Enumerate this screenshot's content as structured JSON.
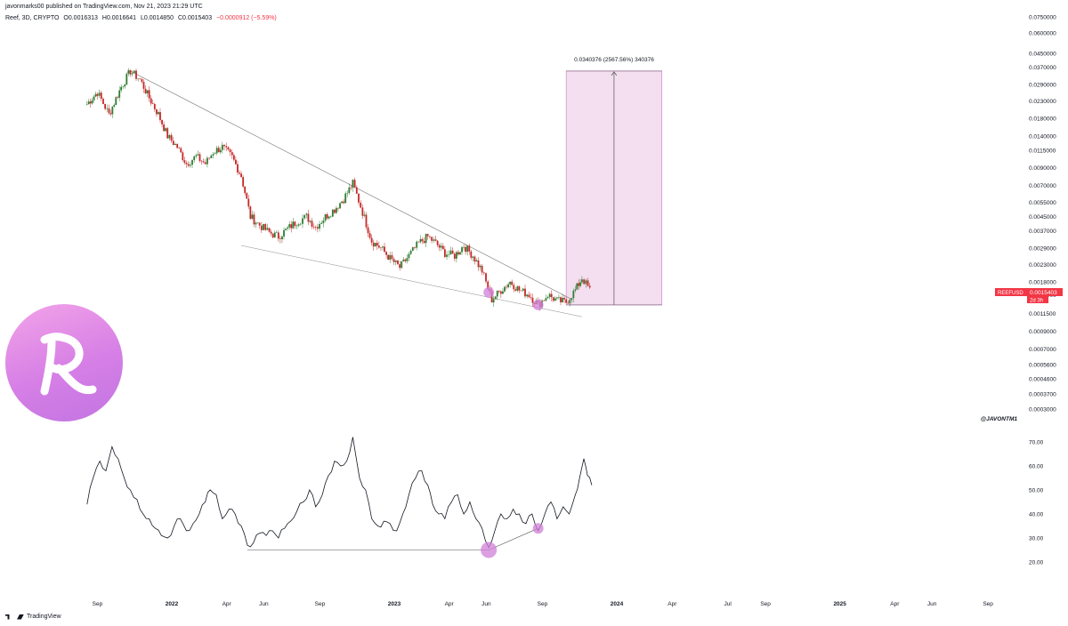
{
  "header": {
    "publisher": "javonmarks00 published on TradingView.com, Nov 21, 2023 21:29 UTC",
    "symbol": "Reef, 3D, CRYPTO",
    "open": "O0.0016313",
    "high": "H0.0016641",
    "low": "L0.0014850",
    "close": "C0.0015403",
    "change": "−0.0000912 (−5.59%)"
  },
  "price_badge": {
    "symbol": "REEFUSD",
    "price": "0.0015403",
    "countdown": "2d 3h",
    "color": "#f23645"
  },
  "projection": {
    "label": "0.0340376 (2567.56%) 340376",
    "fill": "#f3dff0",
    "border": "#c77fc0"
  },
  "watermark": "@JAVONTM1",
  "logo": {
    "icon": "reef-logo-icon",
    "letter": "R"
  },
  "footer": {
    "brand": "TradingView",
    "icon": "tradingview-logo-icon"
  },
  "colors": {
    "up": "#26a69a",
    "down": "#ef5350",
    "up_candle": "#2e7d32",
    "down_candle": "#c62828",
    "highlight": "#d07fd8",
    "line": "#131722"
  },
  "chart_data": [
    {
      "type": "candlestick",
      "scale": "log",
      "price_ticks": [
        "0.0750000",
        "0.0600000",
        "0.0450000",
        "0.0370000",
        "0.0290000",
        "0.0230000",
        "0.0180000",
        "0.0140000",
        "0.0115000",
        "0.0090000",
        "0.0070000",
        "0.0055000",
        "0.0045000",
        "0.0037000",
        "0.0029000",
        "0.0023000",
        "0.0018000",
        "0.0015000",
        "0.0011500",
        "0.0009000",
        "0.0007000",
        "0.0005600",
        "0.0004600",
        "0.0003700",
        "0.0003000"
      ],
      "x_ticks": [
        "Sep",
        "2022",
        "Apr",
        "Jun",
        "Sep",
        "2023",
        "Apr",
        "Jun",
        "Sep",
        "2024",
        "Apr",
        "Jul",
        "Sep",
        "2025",
        "Apr",
        "Jun",
        "Sep"
      ],
      "bold_x_ticks": [
        "2022",
        "2023",
        "2024",
        "2025"
      ],
      "approx_close_path": [
        [
          "2021-08-15",
          0.022
        ],
        [
          "2021-09-01",
          0.026
        ],
        [
          "2021-09-20",
          0.019
        ],
        [
          "2021-10-10",
          0.028
        ],
        [
          "2021-10-25",
          0.035
        ],
        [
          "2021-11-10",
          0.031
        ],
        [
          "2021-11-25",
          0.024
        ],
        [
          "2021-12-10",
          0.019
        ],
        [
          "2021-12-25",
          0.014
        ],
        [
          "2022-01-10",
          0.012
        ],
        [
          "2022-01-25",
          0.0095
        ],
        [
          "2022-02-10",
          0.0105
        ],
        [
          "2022-02-25",
          0.0095
        ],
        [
          "2022-03-10",
          0.0112
        ],
        [
          "2022-03-25",
          0.012
        ],
        [
          "2022-04-10",
          0.0104
        ],
        [
          "2022-04-25",
          0.008
        ],
        [
          "2022-05-10",
          0.0045
        ],
        [
          "2022-05-25",
          0.004
        ],
        [
          "2022-06-10",
          0.0036
        ],
        [
          "2022-06-25",
          0.0034
        ],
        [
          "2022-07-10",
          0.0038
        ],
        [
          "2022-07-25",
          0.0042
        ],
        [
          "2022-08-10",
          0.0045
        ],
        [
          "2022-08-25",
          0.0039
        ],
        [
          "2022-09-10",
          0.0045
        ],
        [
          "2022-09-25",
          0.005
        ],
        [
          "2022-10-10",
          0.0058
        ],
        [
          "2022-10-25",
          0.0072
        ],
        [
          "2022-11-10",
          0.0048
        ],
        [
          "2022-11-25",
          0.0032
        ],
        [
          "2022-12-10",
          0.0029
        ],
        [
          "2022-12-25",
          0.0025
        ],
        [
          "2023-01-10",
          0.0022
        ],
        [
          "2023-01-25",
          0.0026
        ],
        [
          "2023-02-10",
          0.0031
        ],
        [
          "2023-02-25",
          0.0034
        ],
        [
          "2023-03-10",
          0.0031
        ],
        [
          "2023-03-25",
          0.0027
        ],
        [
          "2023-04-10",
          0.0026
        ],
        [
          "2023-04-25",
          0.003
        ],
        [
          "2023-05-10",
          0.0026
        ],
        [
          "2023-05-25",
          0.0021
        ],
        [
          "2023-06-10",
          0.0014
        ],
        [
          "2023-06-25",
          0.0016
        ],
        [
          "2023-07-10",
          0.0018
        ],
        [
          "2023-07-25",
          0.0016
        ],
        [
          "2023-08-10",
          0.0015
        ],
        [
          "2023-08-25",
          0.0013
        ],
        [
          "2023-09-10",
          0.0015
        ],
        [
          "2023-09-25",
          0.00138
        ],
        [
          "2023-10-10",
          0.00135
        ],
        [
          "2023-10-25",
          0.0016
        ],
        [
          "2023-11-05",
          0.0019
        ],
        [
          "2023-11-21",
          0.0015403
        ]
      ],
      "annotations": {
        "upper_trendline": [
          [
            "2021-10-25",
            0.035
          ],
          [
            "2023-10-20",
            0.0014
          ]
        ],
        "lower_trendline": [
          [
            "2022-04-25",
            0.003
          ],
          [
            "2023-11-05",
            0.0011
          ]
        ],
        "highlight_points": [
          [
            "2023-06-05",
            0.00155
          ],
          [
            "2023-08-25",
            0.0013
          ]
        ],
        "target_box": {
          "from_date": "2023-10-10",
          "to_date": "2024-03-15",
          "bottom": 0.0013,
          "top": 0.035
        }
      }
    },
    {
      "type": "line",
      "name": "RSI",
      "y_ticks": [
        "70.00",
        "60.00",
        "50.00",
        "40.00",
        "30.00",
        "20.00"
      ],
      "ylim": [
        17,
        75
      ],
      "points": [
        [
          "2021-08-15",
          44
        ],
        [
          "2021-08-25",
          55
        ],
        [
          "2021-09-05",
          62
        ],
        [
          "2021-09-15",
          58
        ],
        [
          "2021-09-25",
          68
        ],
        [
          "2021-10-05",
          63
        ],
        [
          "2021-10-15",
          55
        ],
        [
          "2021-10-25",
          50
        ],
        [
          "2021-11-05",
          46
        ],
        [
          "2021-11-15",
          40
        ],
        [
          "2021-11-25",
          38
        ],
        [
          "2021-12-05",
          34
        ],
        [
          "2021-12-15",
          31
        ],
        [
          "2021-12-25",
          30
        ],
        [
          "2022-01-05",
          35
        ],
        [
          "2022-01-15",
          38
        ],
        [
          "2022-01-25",
          33
        ],
        [
          "2022-02-05",
          36
        ],
        [
          "2022-02-15",
          40
        ],
        [
          "2022-02-25",
          45
        ],
        [
          "2022-03-05",
          50
        ],
        [
          "2022-03-15",
          48
        ],
        [
          "2022-03-25",
          38
        ],
        [
          "2022-04-05",
          42
        ],
        [
          "2022-04-15",
          40
        ],
        [
          "2022-04-25",
          35
        ],
        [
          "2022-05-05",
          27
        ],
        [
          "2022-05-15",
          28
        ],
        [
          "2022-05-25",
          32
        ],
        [
          "2022-06-05",
          31
        ],
        [
          "2022-06-15",
          33
        ],
        [
          "2022-06-25",
          30
        ],
        [
          "2022-07-05",
          34
        ],
        [
          "2022-07-15",
          37
        ],
        [
          "2022-07-25",
          41
        ],
        [
          "2022-08-05",
          45
        ],
        [
          "2022-08-15",
          50
        ],
        [
          "2022-08-25",
          43
        ],
        [
          "2022-09-05",
          48
        ],
        [
          "2022-09-15",
          56
        ],
        [
          "2022-09-25",
          62
        ],
        [
          "2022-10-05",
          60
        ],
        [
          "2022-10-15",
          62
        ],
        [
          "2022-10-25",
          72
        ],
        [
          "2022-11-05",
          55
        ],
        [
          "2022-11-15",
          50
        ],
        [
          "2022-11-25",
          38
        ],
        [
          "2022-12-05",
          35
        ],
        [
          "2022-12-15",
          37
        ],
        [
          "2022-12-25",
          36
        ],
        [
          "2023-01-05",
          33
        ],
        [
          "2023-01-15",
          40
        ],
        [
          "2023-01-25",
          48
        ],
        [
          "2023-02-05",
          55
        ],
        [
          "2023-02-15",
          58
        ],
        [
          "2023-02-25",
          52
        ],
        [
          "2023-03-05",
          44
        ],
        [
          "2023-03-15",
          40
        ],
        [
          "2023-03-25",
          38
        ],
        [
          "2023-04-05",
          45
        ],
        [
          "2023-04-15",
          48
        ],
        [
          "2023-04-25",
          40
        ],
        [
          "2023-05-05",
          45
        ],
        [
          "2023-05-15",
          38
        ],
        [
          "2023-05-25",
          34
        ],
        [
          "2023-06-05",
          26
        ],
        [
          "2023-06-15",
          33
        ],
        [
          "2023-06-25",
          40
        ],
        [
          "2023-07-05",
          38
        ],
        [
          "2023-07-15",
          42
        ],
        [
          "2023-07-25",
          40
        ],
        [
          "2023-08-05",
          36
        ],
        [
          "2023-08-15",
          40
        ],
        [
          "2023-08-25",
          33
        ],
        [
          "2023-09-05",
          40
        ],
        [
          "2023-09-15",
          45
        ],
        [
          "2023-09-25",
          38
        ],
        [
          "2023-10-05",
          43
        ],
        [
          "2023-10-15",
          40
        ],
        [
          "2023-10-25",
          48
        ],
        [
          "2023-11-01",
          55
        ],
        [
          "2023-11-08",
          63
        ],
        [
          "2023-11-14",
          56
        ],
        [
          "2023-11-21",
          52
        ]
      ],
      "annotations": {
        "support_line": [
          [
            "2022-05-05",
            25
          ],
          [
            "2023-06-05",
            25
          ]
        ],
        "divergence_line": [
          [
            "2023-06-05",
            25
          ],
          [
            "2023-08-25",
            34
          ]
        ],
        "highlight_points": [
          [
            "2023-06-05",
            25
          ],
          [
            "2023-08-25",
            34
          ]
        ]
      }
    }
  ]
}
